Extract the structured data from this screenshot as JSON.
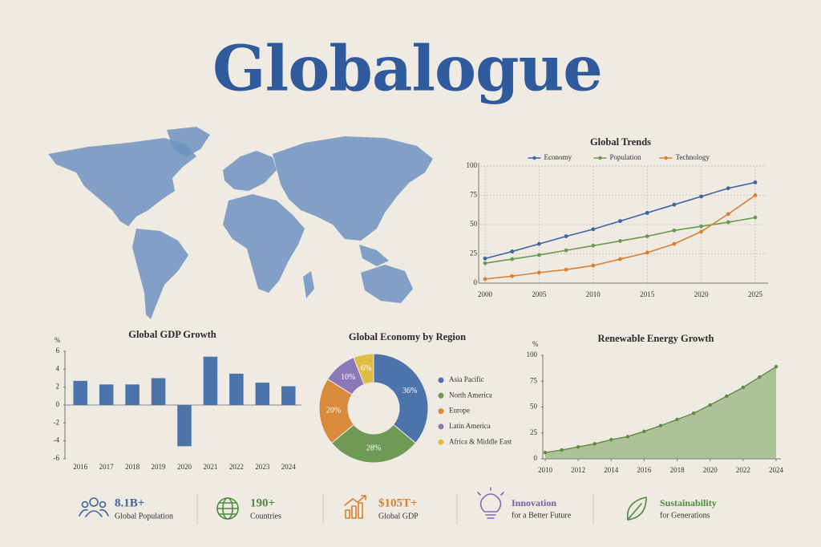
{
  "header": {
    "title": "Globalogue"
  },
  "chart_data": [
    {
      "type": "line",
      "title": "Global Trends",
      "x": [
        2000,
        2002.5,
        2005,
        2007.5,
        2010,
        2012.5,
        2015,
        2017.5,
        2020,
        2022.5,
        2025
      ],
      "xlim": [
        2000,
        2025
      ],
      "xticks": [
        2000,
        2005,
        2010,
        2015,
        2020,
        2025
      ],
      "ylim": [
        0,
        100
      ],
      "yticks": [
        0,
        25,
        50,
        75,
        100
      ],
      "grid": true,
      "legend": "top",
      "series": [
        {
          "name": "Economy",
          "color": "#3d65a0",
          "values": [
            21,
            27,
            33.5,
            40,
            46,
            53,
            60,
            67,
            74,
            81,
            86
          ]
        },
        {
          "name": "Population",
          "color": "#6a9a50",
          "values": [
            17,
            20.5,
            24,
            28,
            32,
            36,
            40,
            45,
            48.5,
            52,
            56
          ]
        },
        {
          "name": "Technology",
          "color": "#d98030",
          "values": [
            3.5,
            6,
            9,
            11.5,
            15,
            20.5,
            26,
            33.5,
            44,
            59,
            75
          ]
        }
      ]
    },
    {
      "type": "bar",
      "title": "Global GDP Growth",
      "y_label": "%",
      "categories": [
        "2016",
        "2017",
        "2018",
        "2019",
        "2020",
        "2021",
        "2022",
        "2023",
        "2024"
      ],
      "values": [
        2.7,
        2.3,
        2.3,
        3.0,
        -4.6,
        5.4,
        3.5,
        2.5,
        2.1
      ],
      "color": "#4d74aa",
      "ylim": [
        -6,
        6
      ],
      "yticks": [
        6,
        4,
        2,
        0,
        -2,
        -4,
        -6
      ]
    },
    {
      "type": "pie",
      "title": "Global Economy by Region",
      "donut": true,
      "legend": "right",
      "categories": [
        "Asia Pacific",
        "North America",
        "Europe",
        "Latin America",
        "Africa & Middle East"
      ],
      "values": [
        36,
        28,
        20,
        10,
        6
      ],
      "value_labels": [
        "36%",
        "28%",
        "20%",
        "10%",
        "6%"
      ],
      "colors": [
        "#4d74aa",
        "#6f9a55",
        "#d98a3a",
        "#8a79b5",
        "#e0bb45"
      ]
    },
    {
      "type": "area",
      "title": "Renewable Energy Growth",
      "y_label": "%",
      "x": [
        2010,
        2011,
        2012,
        2013,
        2014,
        2015,
        2016,
        2017,
        2018,
        2019,
        2020,
        2021,
        2022,
        2023,
        2024
      ],
      "values": [
        6,
        8.5,
        11.5,
        14.5,
        18.5,
        21.5,
        26.5,
        32,
        38,
        44,
        52,
        60.5,
        69,
        79,
        89
      ],
      "color": "#76a05a",
      "xlim": [
        2010,
        2024
      ],
      "xticks": [
        2010,
        2012,
        2014,
        2016,
        2018,
        2020,
        2022,
        2024
      ],
      "ylim": [
        0,
        100
      ],
      "yticks": [
        0,
        25,
        50,
        75,
        100
      ]
    }
  ],
  "stats": [
    {
      "value": "8.1B+",
      "label": "Global Population"
    },
    {
      "value": "190+",
      "label": "Countries"
    },
    {
      "value": "$105T+",
      "label": "Global GDP"
    },
    {
      "value": "Innovation",
      "label": "for a Better Future"
    },
    {
      "value": "Sustainability",
      "label": "for Generations"
    }
  ]
}
